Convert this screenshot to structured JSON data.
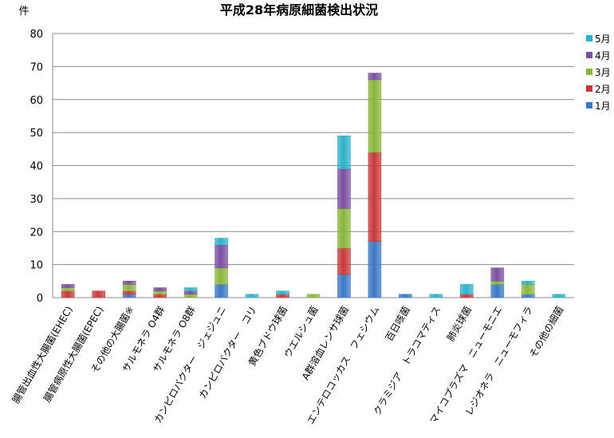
{
  "chart_data": {
    "type": "bar",
    "stacked": true,
    "title": "平成28年病原細菌検出状況",
    "ylabel": "件",
    "xlabel": "",
    "ylim": [
      0,
      80
    ],
    "yticks": [
      0,
      10,
      20,
      30,
      40,
      50,
      60,
      70,
      80
    ],
    "grid": true,
    "legend": "right",
    "categories": [
      "腸管出血性大腸菌(EHEC)",
      "腸管病原性大腸菌(EPEC)",
      "その他の大腸菌※",
      "サルモネラ O4群",
      "サルモネラ O8群",
      "カンピロバクター　ジェジュニ",
      "カンピロバクター　コリ",
      "黄色ブドウ球菌",
      "ウエルシュ菌",
      "A群溶血レンサ球菌",
      "エンテロコッカス　フェシウム",
      "百日咳菌",
      "クラミジア　トラコマティス",
      "肺炎球菌",
      "マイコプラズマ　ニューモニエ",
      "レジオネラ　ニューモフィラ",
      "その他の細菌"
    ],
    "series": [
      {
        "name": "1月",
        "color": "#3a78c4",
        "values": [
          0,
          0,
          1,
          0,
          0,
          4,
          0,
          0,
          0,
          7,
          17,
          1,
          0,
          0,
          4,
          1,
          0
        ]
      },
      {
        "name": "2月",
        "color": "#c8393a",
        "values": [
          2,
          2,
          1,
          1,
          0,
          0,
          0,
          1,
          0,
          8,
          27,
          0,
          0,
          1,
          0,
          0,
          0
        ]
      },
      {
        "name": "3月",
        "color": "#8ab53b",
        "values": [
          1,
          0,
          2,
          1,
          1,
          5,
          0,
          0,
          1,
          12,
          22,
          0,
          0,
          0,
          1,
          3,
          0
        ]
      },
      {
        "name": "4月",
        "color": "#7a4f9f",
        "values": [
          1,
          0,
          1,
          1,
          1,
          7,
          0,
          0,
          0,
          12,
          2,
          0,
          0,
          0,
          4,
          0,
          0
        ]
      },
      {
        "name": "5月",
        "color": "#2fb0c9",
        "values": [
          0,
          0,
          0,
          0,
          1,
          2,
          1,
          1,
          0,
          10,
          0,
          0,
          1,
          3,
          0,
          1,
          1
        ]
      }
    ]
  }
}
